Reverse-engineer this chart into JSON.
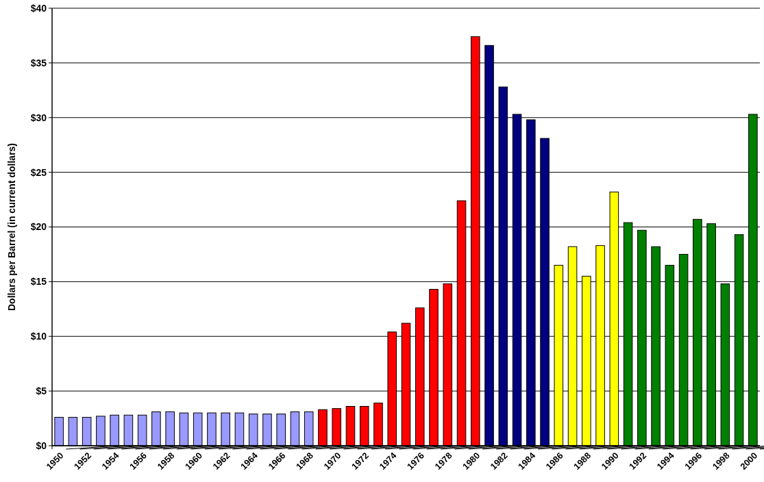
{
  "chart_data": {
    "type": "bar",
    "ylabel": "Dollars per Barrel (in current dollars)",
    "categories": [
      "1950",
      null,
      "1952",
      null,
      "1954",
      null,
      "1956",
      null,
      "1958",
      null,
      "1960",
      null,
      "1962",
      null,
      "1964",
      null,
      "1966",
      null,
      "1968",
      null,
      "1970",
      null,
      "1972",
      null,
      "1974",
      null,
      "1976",
      null,
      "1978",
      null,
      "1980",
      null,
      "1982",
      null,
      "1984",
      null,
      "1986",
      null,
      "1988",
      null,
      "1990",
      null,
      "1992",
      null,
      "1994",
      null,
      "1996",
      null,
      "1998",
      null,
      "2000"
    ],
    "values": [
      2.6,
      2.6,
      2.6,
      2.7,
      2.8,
      2.8,
      2.8,
      3.1,
      3.1,
      3.0,
      3.0,
      3.0,
      3.0,
      3.0,
      2.9,
      2.9,
      2.9,
      3.1,
      3.1,
      3.3,
      3.4,
      3.6,
      3.6,
      3.9,
      10.4,
      11.2,
      12.6,
      14.3,
      14.8,
      22.4,
      37.4,
      36.6,
      32.8,
      30.3,
      29.8,
      28.1,
      16.5,
      18.2,
      15.5,
      18.3,
      23.2,
      20.4,
      19.7,
      18.2,
      16.5,
      17.5,
      20.7,
      20.3,
      14.8,
      19.3,
      30.3
    ],
    "colors": [
      "#9999ff",
      "#9999ff",
      "#9999ff",
      "#9999ff",
      "#9999ff",
      "#9999ff",
      "#9999ff",
      "#9999ff",
      "#9999ff",
      "#9999ff",
      "#9999ff",
      "#9999ff",
      "#9999ff",
      "#9999ff",
      "#9999ff",
      "#9999ff",
      "#9999ff",
      "#9999ff",
      "#9999ff",
      "#ff0000",
      "#ff0000",
      "#ff0000",
      "#ff0000",
      "#ff0000",
      "#ff0000",
      "#ff0000",
      "#ff0000",
      "#ff0000",
      "#ff0000",
      "#ff0000",
      "#ff0000",
      "#000080",
      "#000080",
      "#000080",
      "#000080",
      "#000080",
      "#ffff00",
      "#ffff00",
      "#ffff00",
      "#ffff00",
      "#ffff00",
      "#008000",
      "#008000",
      "#008000",
      "#008000",
      "#008000",
      "#008000",
      "#008000",
      "#008000",
      "#008000",
      "#008000"
    ],
    "ylim": [
      0,
      40
    ],
    "yticks": [
      {
        "value": 0,
        "label": "$0"
      },
      {
        "value": 5,
        "label": "$5"
      },
      {
        "value": 10,
        "label": "$10"
      },
      {
        "value": 15,
        "label": "$15"
      },
      {
        "value": 20,
        "label": "$20"
      },
      {
        "value": 25,
        "label": "$25"
      },
      {
        "value": 30,
        "label": "$30"
      },
      {
        "value": 35,
        "label": "$35"
      },
      {
        "value": 40,
        "label": "$40"
      }
    ],
    "grid": "y"
  }
}
